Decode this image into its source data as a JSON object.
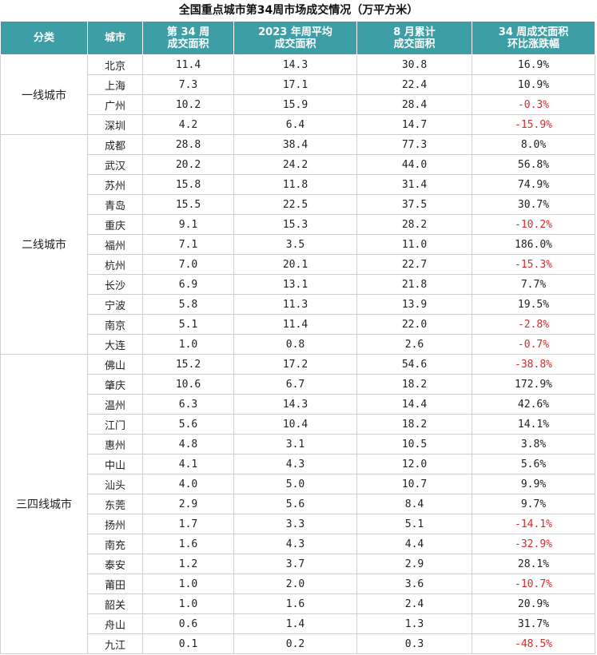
{
  "title": "全国重点城市第34周市场成交情况（万平方米）",
  "colors": {
    "header_bg": "#3d9ea5",
    "negative": "#e0262b"
  },
  "headers": [
    {
      "line1": "分类",
      "line2": ""
    },
    {
      "line1": "城市",
      "line2": ""
    },
    {
      "line1": "第 34 周",
      "line2": "成交面积"
    },
    {
      "line1": "2023 年周平均",
      "line2": "成交面积"
    },
    {
      "line1": "8 月累计",
      "line2": "成交面积"
    },
    {
      "line1": "34 周成交面积",
      "line2": "环比涨跌幅"
    }
  ],
  "groups": [
    {
      "name": "一线城市",
      "rows": [
        {
          "city": "北京",
          "week34": "11.4",
          "avg2023": "14.3",
          "aug": "30.8",
          "change": "16.9%"
        },
        {
          "city": "上海",
          "week34": "7.3",
          "avg2023": "17.1",
          "aug": "22.4",
          "change": "10.9%"
        },
        {
          "city": "广州",
          "week34": "10.2",
          "avg2023": "15.9",
          "aug": "28.4",
          "change": "-0.3%"
        },
        {
          "city": "深圳",
          "week34": "4.2",
          "avg2023": "6.4",
          "aug": "14.7",
          "change": "-15.9%"
        }
      ]
    },
    {
      "name": "二线城市",
      "rows": [
        {
          "city": "成都",
          "week34": "28.8",
          "avg2023": "38.4",
          "aug": "77.3",
          "change": "8.0%"
        },
        {
          "city": "武汉",
          "week34": "20.2",
          "avg2023": "24.2",
          "aug": "44.0",
          "change": "56.8%"
        },
        {
          "city": "苏州",
          "week34": "15.8",
          "avg2023": "11.8",
          "aug": "31.4",
          "change": "74.9%"
        },
        {
          "city": "青岛",
          "week34": "15.5",
          "avg2023": "22.5",
          "aug": "37.5",
          "change": "30.7%"
        },
        {
          "city": "重庆",
          "week34": "9.1",
          "avg2023": "15.3",
          "aug": "28.2",
          "change": "-10.2%"
        },
        {
          "city": "福州",
          "week34": "7.1",
          "avg2023": "3.5",
          "aug": "11.0",
          "change": "186.0%"
        },
        {
          "city": "杭州",
          "week34": "7.0",
          "avg2023": "20.1",
          "aug": "22.7",
          "change": "-15.3%"
        },
        {
          "city": "长沙",
          "week34": "6.9",
          "avg2023": "13.1",
          "aug": "21.8",
          "change": "7.7%"
        },
        {
          "city": "宁波",
          "week34": "5.8",
          "avg2023": "11.3",
          "aug": "13.9",
          "change": "19.5%"
        },
        {
          "city": "南京",
          "week34": "5.1",
          "avg2023": "11.4",
          "aug": "22.0",
          "change": "-2.8%"
        },
        {
          "city": "大连",
          "week34": "1.0",
          "avg2023": "0.8",
          "aug": "2.6",
          "change": "-0.7%"
        }
      ]
    },
    {
      "name": "三四线城市",
      "rows": [
        {
          "city": "佛山",
          "week34": "15.2",
          "avg2023": "17.2",
          "aug": "54.6",
          "change": "-38.8%"
        },
        {
          "city": "肇庆",
          "week34": "10.6",
          "avg2023": "6.7",
          "aug": "18.2",
          "change": "172.9%"
        },
        {
          "city": "温州",
          "week34": "6.3",
          "avg2023": "14.3",
          "aug": "14.4",
          "change": "42.6%"
        },
        {
          "city": "江门",
          "week34": "5.6",
          "avg2023": "10.4",
          "aug": "18.2",
          "change": "14.1%"
        },
        {
          "city": "惠州",
          "week34": "4.8",
          "avg2023": "3.1",
          "aug": "10.5",
          "change": "3.8%"
        },
        {
          "city": "中山",
          "week34": "4.1",
          "avg2023": "4.3",
          "aug": "12.0",
          "change": "5.6%"
        },
        {
          "city": "汕头",
          "week34": "4.0",
          "avg2023": "5.0",
          "aug": "10.7",
          "change": "9.9%"
        },
        {
          "city": "东莞",
          "week34": "2.9",
          "avg2023": "5.6",
          "aug": "8.4",
          "change": "9.7%"
        },
        {
          "city": "扬州",
          "week34": "1.7",
          "avg2023": "3.3",
          "aug": "5.1",
          "change": "-14.1%"
        },
        {
          "city": "南充",
          "week34": "1.6",
          "avg2023": "4.3",
          "aug": "4.4",
          "change": "-32.9%"
        },
        {
          "city": "泰安",
          "week34": "1.2",
          "avg2023": "3.7",
          "aug": "2.9",
          "change": "28.1%"
        },
        {
          "city": "莆田",
          "week34": "1.0",
          "avg2023": "2.0",
          "aug": "3.6",
          "change": "-10.7%"
        },
        {
          "city": "韶关",
          "week34": "1.0",
          "avg2023": "1.6",
          "aug": "2.4",
          "change": "20.9%"
        },
        {
          "city": "舟山",
          "week34": "0.6",
          "avg2023": "1.4",
          "aug": "1.3",
          "change": "31.7%"
        },
        {
          "city": "九江",
          "week34": "0.1",
          "avg2023": "0.2",
          "aug": "0.3",
          "change": "-48.5%"
        }
      ]
    }
  ]
}
